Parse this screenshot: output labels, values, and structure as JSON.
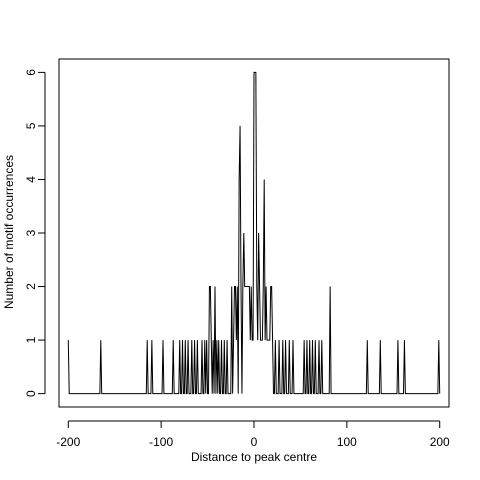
{
  "chart_data": {
    "type": "line",
    "xlabel": "Distance to peak centre",
    "ylabel": "Number of motif occurrences",
    "xlim": [
      -210,
      210
    ],
    "ylim": [
      -0.25,
      6.25
    ],
    "x_ticks": [
      -200,
      -100,
      0,
      100,
      200
    ],
    "x_tick_labels": [
      "-200",
      "-100",
      "0",
      "100",
      "200"
    ],
    "y_ticks": [
      0,
      1,
      2,
      3,
      4,
      5,
      6
    ],
    "y_tick_labels": [
      "0",
      "1",
      "2",
      "3",
      "4",
      "5",
      "6"
    ],
    "grid": false,
    "nonzero_counts": [
      [
        -200,
        1
      ],
      [
        -165,
        1
      ],
      [
        -115,
        1
      ],
      [
        -110,
        1
      ],
      [
        -98,
        1
      ],
      [
        -87,
        1
      ],
      [
        -80,
        1
      ],
      [
        -77,
        1
      ],
      [
        -74,
        1
      ],
      [
        -71,
        1
      ],
      [
        -67,
        1
      ],
      [
        -64,
        1
      ],
      [
        -61,
        1
      ],
      [
        -56,
        1
      ],
      [
        -53,
        1
      ],
      [
        -51,
        1
      ],
      [
        -48,
        2
      ],
      [
        -47,
        2
      ],
      [
        -46,
        1
      ],
      [
        -44,
        1
      ],
      [
        -42,
        2
      ],
      [
        -40,
        1
      ],
      [
        -38,
        1
      ],
      [
        -35,
        1
      ],
      [
        -32,
        1
      ],
      [
        -29,
        1
      ],
      [
        -24,
        2
      ],
      [
        -22,
        1
      ],
      [
        -21,
        2
      ],
      [
        -20,
        2
      ],
      [
        -19,
        1
      ],
      [
        -18,
        2
      ],
      [
        -16,
        4
      ],
      [
        -15,
        5
      ],
      [
        -14,
        2
      ],
      [
        -12,
        2
      ],
      [
        -11,
        3
      ],
      [
        -10,
        2
      ],
      [
        -9,
        2
      ],
      [
        -8,
        2
      ],
      [
        -7,
        2
      ],
      [
        -6,
        2
      ],
      [
        -5,
        2
      ],
      [
        -4,
        1
      ],
      [
        -3,
        2
      ],
      [
        -2,
        1
      ],
      [
        -1,
        1
      ],
      [
        0,
        6
      ],
      [
        1,
        6
      ],
      [
        2,
        6
      ],
      [
        3,
        2
      ],
      [
        4,
        1
      ],
      [
        5,
        3
      ],
      [
        6,
        2
      ],
      [
        7,
        1
      ],
      [
        8,
        1
      ],
      [
        9,
        1
      ],
      [
        10,
        2
      ],
      [
        11,
        4
      ],
      [
        12,
        1
      ],
      [
        13,
        2
      ],
      [
        14,
        1
      ],
      [
        15,
        1
      ],
      [
        16,
        1
      ],
      [
        17,
        1
      ],
      [
        18,
        2
      ],
      [
        19,
        2
      ],
      [
        20,
        1
      ],
      [
        23,
        1
      ],
      [
        27,
        1
      ],
      [
        31,
        1
      ],
      [
        34,
        1
      ],
      [
        38,
        1
      ],
      [
        42,
        1
      ],
      [
        54,
        1
      ],
      [
        57,
        1
      ],
      [
        60,
        1
      ],
      [
        63,
        1
      ],
      [
        66,
        1
      ],
      [
        70,
        1
      ],
      [
        73,
        1
      ],
      [
        82,
        2
      ],
      [
        122,
        1
      ],
      [
        136,
        1
      ],
      [
        155,
        1
      ],
      [
        162,
        1
      ],
      [
        199,
        1
      ]
    ]
  }
}
